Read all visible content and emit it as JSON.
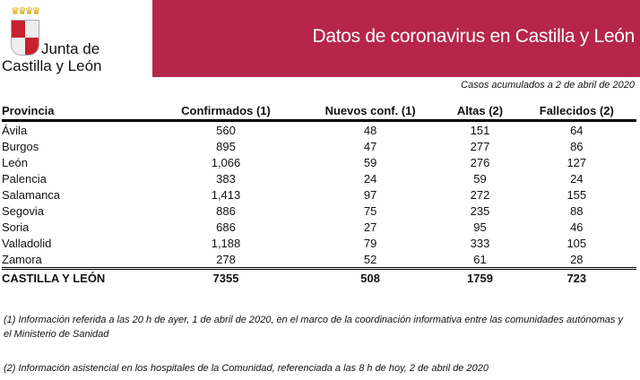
{
  "logo": {
    "line1": "Junta de",
    "line2": "Castilla y León"
  },
  "banner": {
    "title": "Datos de coronavirus en Castilla y León",
    "color": "#b5264a"
  },
  "subtitle": "Casos acumulados a 2 de abril de 2020",
  "table": {
    "headers": [
      "Provincia",
      "Confirmados (1)",
      "Nuevos conf. (1)",
      "Altas (2)",
      "Fallecidos (2)"
    ],
    "rows": [
      [
        "Ávila",
        "560",
        "48",
        "151",
        "64"
      ],
      [
        "Burgos",
        "895",
        "47",
        "277",
        "86"
      ],
      [
        "León",
        "1,066",
        "59",
        "276",
        "127"
      ],
      [
        "Palencia",
        "383",
        "24",
        "59",
        "24"
      ],
      [
        "Salamanca",
        "1,413",
        "97",
        "272",
        "155"
      ],
      [
        "Segovia",
        "886",
        "75",
        "235",
        "88"
      ],
      [
        "Soria",
        "686",
        "27",
        "95",
        "46"
      ],
      [
        "Valladolid",
        "1,188",
        "79",
        "333",
        "105"
      ],
      [
        "Zamora",
        "278",
        "52",
        "61",
        "28"
      ]
    ],
    "total": [
      "CASTILLA Y LEÓN",
      "7355",
      "508",
      "1759",
      "723"
    ]
  },
  "footnotes": [
    "(1) Información referida a las 20 h de ayer, 1 de abril de 2020, en el marco de la coordinación informativa entre las comunidades autónomas y el Ministerio de Sanidad",
    "(2) Información asistencial en los hospitales de la Comunidad, referenciada a las 8 h de hoy, 2 de abril de 2020"
  ]
}
